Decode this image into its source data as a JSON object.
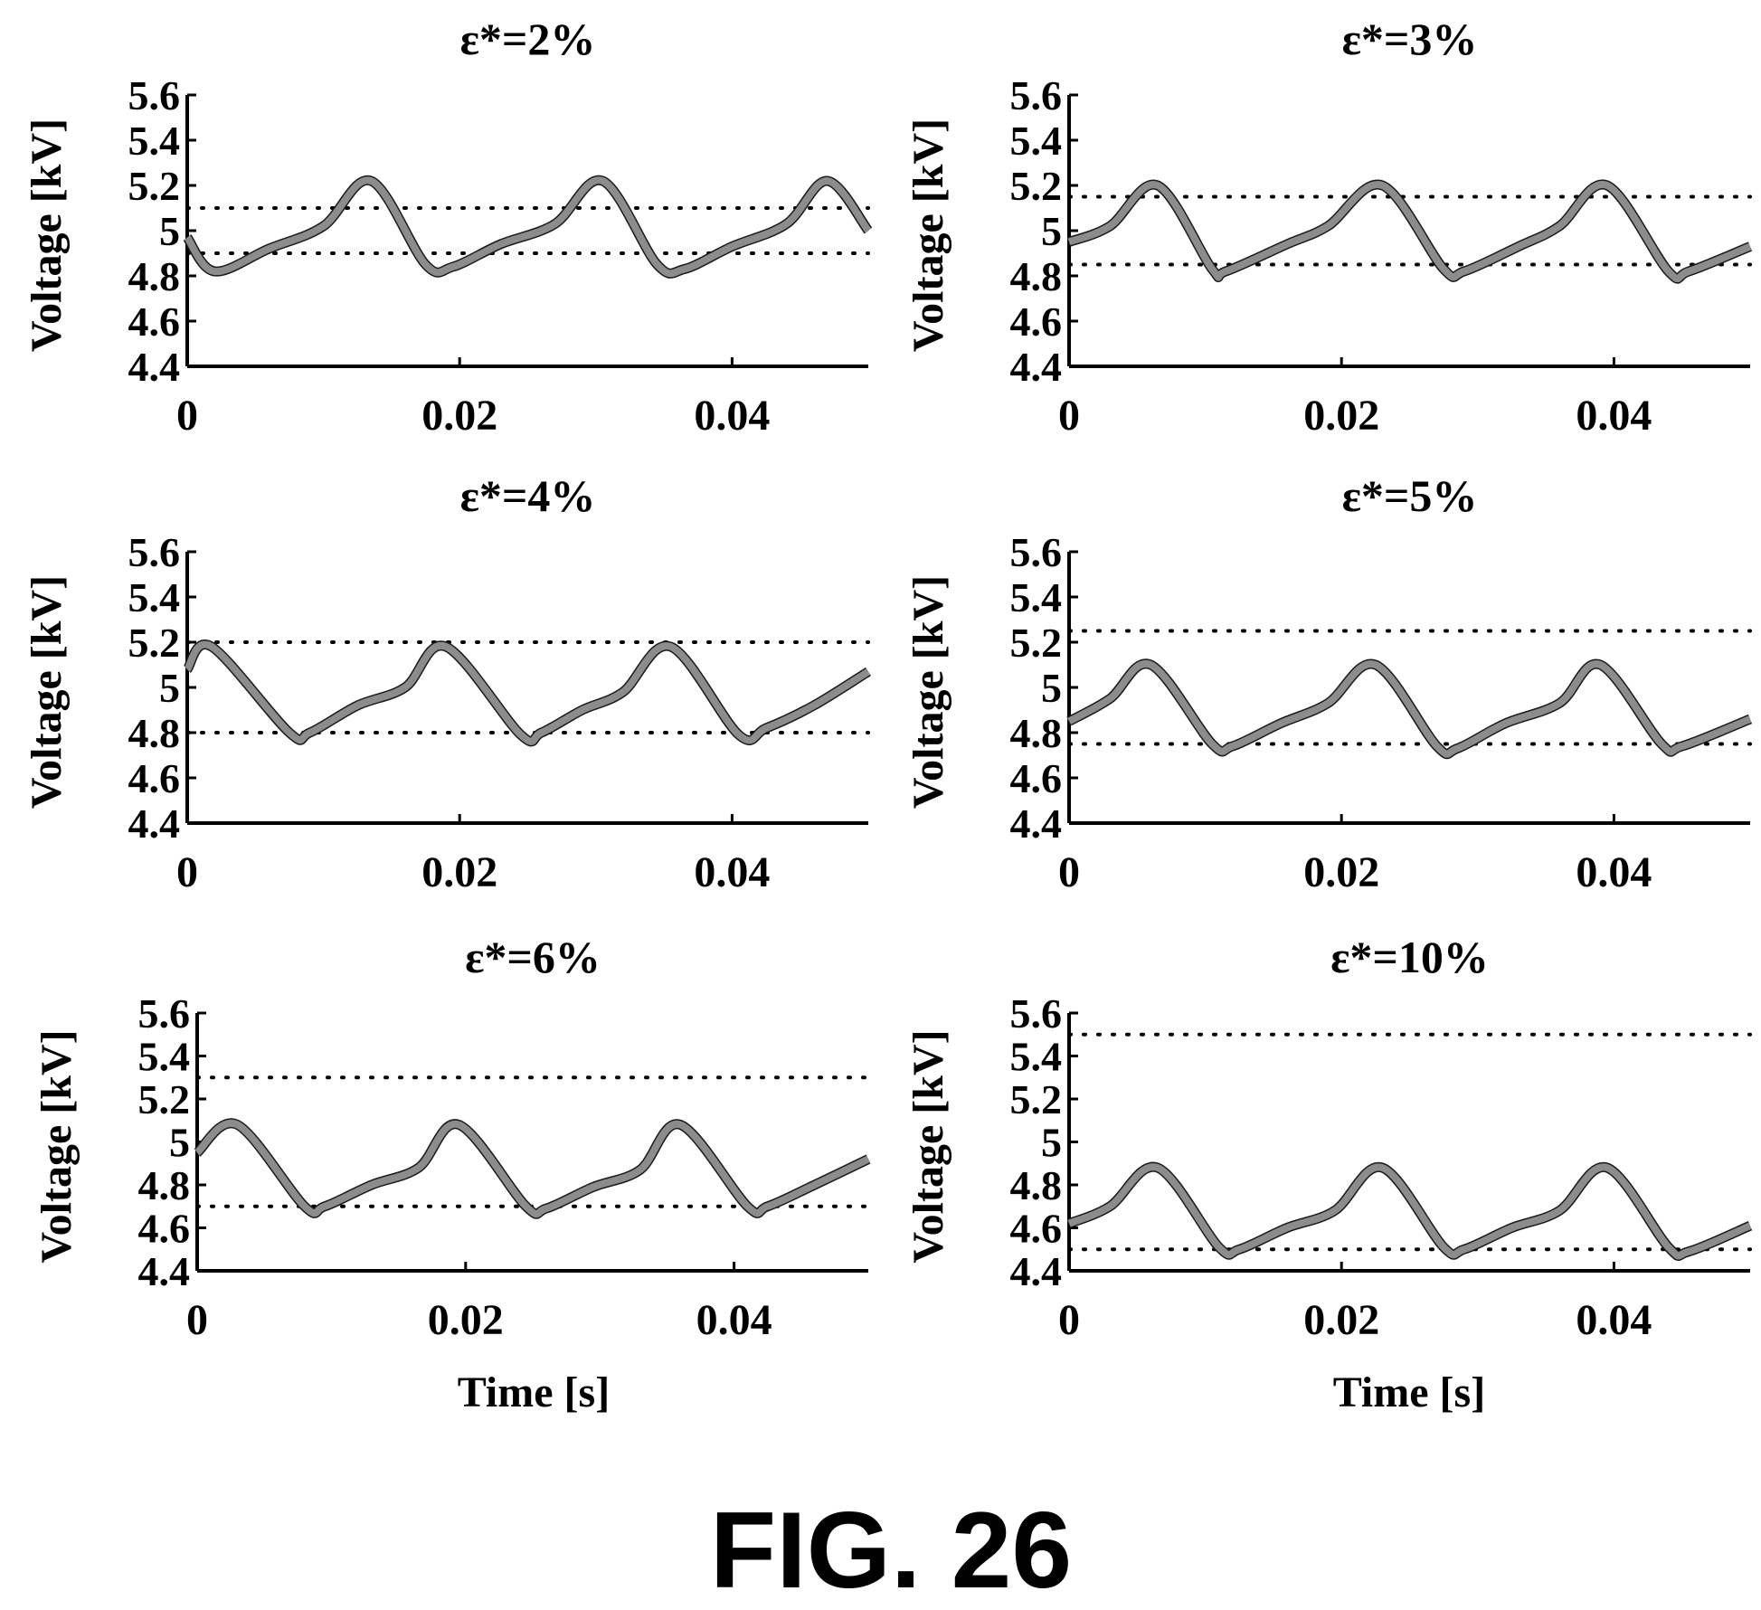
{
  "figure": {
    "caption": "FIG. 26",
    "ylabel": "Voltage [kV]",
    "xlabel": "Time [s]",
    "colors": {
      "line": "#8c8c8c",
      "line_dark": "#1a1a1a",
      "axis": "#000000"
    }
  },
  "chart_data": [
    {
      "type": "line",
      "title": "ε*=2%",
      "xlim": [
        0,
        0.05
      ],
      "ylim": [
        4.4,
        5.6
      ],
      "x_ticks": [
        "0",
        "0.02",
        "0.04"
      ],
      "y_ticks": [
        "4.4",
        "4.6",
        "4.8",
        "5",
        "5.2",
        "5.4",
        "5.6"
      ],
      "thresholds": [
        4.9,
        5.1
      ],
      "series": [
        {
          "x": [
            0,
            0.002,
            0.006,
            0.01,
            0.0135,
            0.0175,
            0.0195,
            0.023,
            0.027,
            0.0305,
            0.0345,
            0.0365,
            0.04,
            0.044,
            0.047,
            0.05
          ],
          "y": [
            4.97,
            4.82,
            4.92,
            5.02,
            5.22,
            4.85,
            4.84,
            4.94,
            5.03,
            5.22,
            4.85,
            4.83,
            4.93,
            5.03,
            5.22,
            5.0
          ]
        }
      ]
    },
    {
      "type": "line",
      "title": "ε*=3%",
      "xlim": [
        0,
        0.05
      ],
      "ylim": [
        4.4,
        5.6
      ],
      "x_ticks": [
        "0",
        "0.02",
        "0.04"
      ],
      "y_ticks": [
        "4.4",
        "4.6",
        "4.8",
        "5",
        "5.2",
        "5.4",
        "5.6"
      ],
      "thresholds": [
        4.85,
        5.15
      ],
      "series": [
        {
          "x": [
            0,
            0.003,
            0.0065,
            0.0105,
            0.0115,
            0.016,
            0.019,
            0.023,
            0.0275,
            0.029,
            0.033,
            0.036,
            0.0395,
            0.044,
            0.0455,
            0.05
          ],
          "y": [
            4.95,
            5.02,
            5.2,
            4.83,
            4.82,
            4.94,
            5.02,
            5.2,
            4.83,
            4.82,
            4.93,
            5.02,
            5.2,
            4.82,
            4.82,
            4.93
          ]
        }
      ]
    },
    {
      "type": "line",
      "title": "ε*=4%",
      "xlim": [
        0,
        0.05
      ],
      "ylim": [
        4.4,
        5.6
      ],
      "x_ticks": [
        "0",
        "0.02",
        "0.04"
      ],
      "y_ticks": [
        "4.4",
        "4.6",
        "4.8",
        "5",
        "5.2",
        "5.4",
        "5.6"
      ],
      "thresholds": [
        4.8,
        5.2
      ],
      "series": [
        {
          "x": [
            0,
            0.0018,
            0.0075,
            0.009,
            0.0125,
            0.016,
            0.019,
            0.0245,
            0.026,
            0.029,
            0.032,
            0.0355,
            0.0405,
            0.0425,
            0.046,
            0.05
          ],
          "y": [
            5.08,
            5.18,
            4.8,
            4.8,
            4.92,
            5.0,
            5.18,
            4.79,
            4.8,
            4.9,
            4.98,
            5.18,
            4.79,
            4.82,
            4.92,
            5.07
          ]
        }
      ]
    },
    {
      "type": "line",
      "title": "ε*=5%",
      "xlim": [
        0,
        0.05
      ],
      "ylim": [
        4.4,
        5.6
      ],
      "x_ticks": [
        "0",
        "0.02",
        "0.04"
      ],
      "y_ticks": [
        "4.4",
        "4.6",
        "4.8",
        "5",
        "5.2",
        "5.4",
        "5.6"
      ],
      "thresholds": [
        4.75,
        5.25
      ],
      "series": [
        {
          "x": [
            0,
            0.003,
            0.006,
            0.0105,
            0.012,
            0.0155,
            0.019,
            0.0225,
            0.027,
            0.0285,
            0.032,
            0.036,
            0.039,
            0.0435,
            0.045,
            0.05
          ],
          "y": [
            4.85,
            4.95,
            5.1,
            4.75,
            4.74,
            4.84,
            4.93,
            5.1,
            4.74,
            4.73,
            4.84,
            4.93,
            5.1,
            4.75,
            4.74,
            4.86
          ]
        }
      ]
    },
    {
      "type": "line",
      "title": "ε*=6%",
      "xlim": [
        0,
        0.05
      ],
      "ylim": [
        4.4,
        5.6
      ],
      "x_ticks": [
        "0",
        "0.02",
        "0.04"
      ],
      "y_ticks": [
        "4.4",
        "4.6",
        "4.8",
        "5",
        "5.2",
        "5.4",
        "5.6"
      ],
      "thresholds": [
        4.7,
        5.3
      ],
      "series": [
        {
          "x": [
            0,
            0.003,
            0.008,
            0.0095,
            0.013,
            0.0165,
            0.0195,
            0.0245,
            0.026,
            0.0295,
            0.033,
            0.036,
            0.041,
            0.0425,
            0.046,
            0.05
          ],
          "y": [
            4.95,
            5.08,
            4.7,
            4.7,
            4.8,
            4.88,
            5.08,
            4.7,
            4.69,
            4.79,
            4.87,
            5.08,
            4.7,
            4.7,
            4.8,
            4.92
          ]
        }
      ]
    },
    {
      "type": "line",
      "title": "ε*=10%",
      "xlim": [
        0,
        0.05
      ],
      "ylim": [
        4.4,
        5.6
      ],
      "x_ticks": [
        "0",
        "0.02",
        "0.04"
      ],
      "y_ticks": [
        "4.4",
        "4.6",
        "4.8",
        "5",
        "5.2",
        "5.4",
        "5.6"
      ],
      "thresholds": [
        4.5,
        5.5
      ],
      "series": [
        {
          "x": [
            0,
            0.003,
            0.0065,
            0.011,
            0.0125,
            0.016,
            0.0195,
            0.023,
            0.0275,
            0.029,
            0.0325,
            0.036,
            0.0395,
            0.044,
            0.0455,
            0.05
          ],
          "y": [
            4.62,
            4.7,
            4.88,
            4.51,
            4.5,
            4.6,
            4.68,
            4.88,
            4.51,
            4.5,
            4.6,
            4.68,
            4.88,
            4.51,
            4.49,
            4.61
          ]
        }
      ]
    }
  ]
}
